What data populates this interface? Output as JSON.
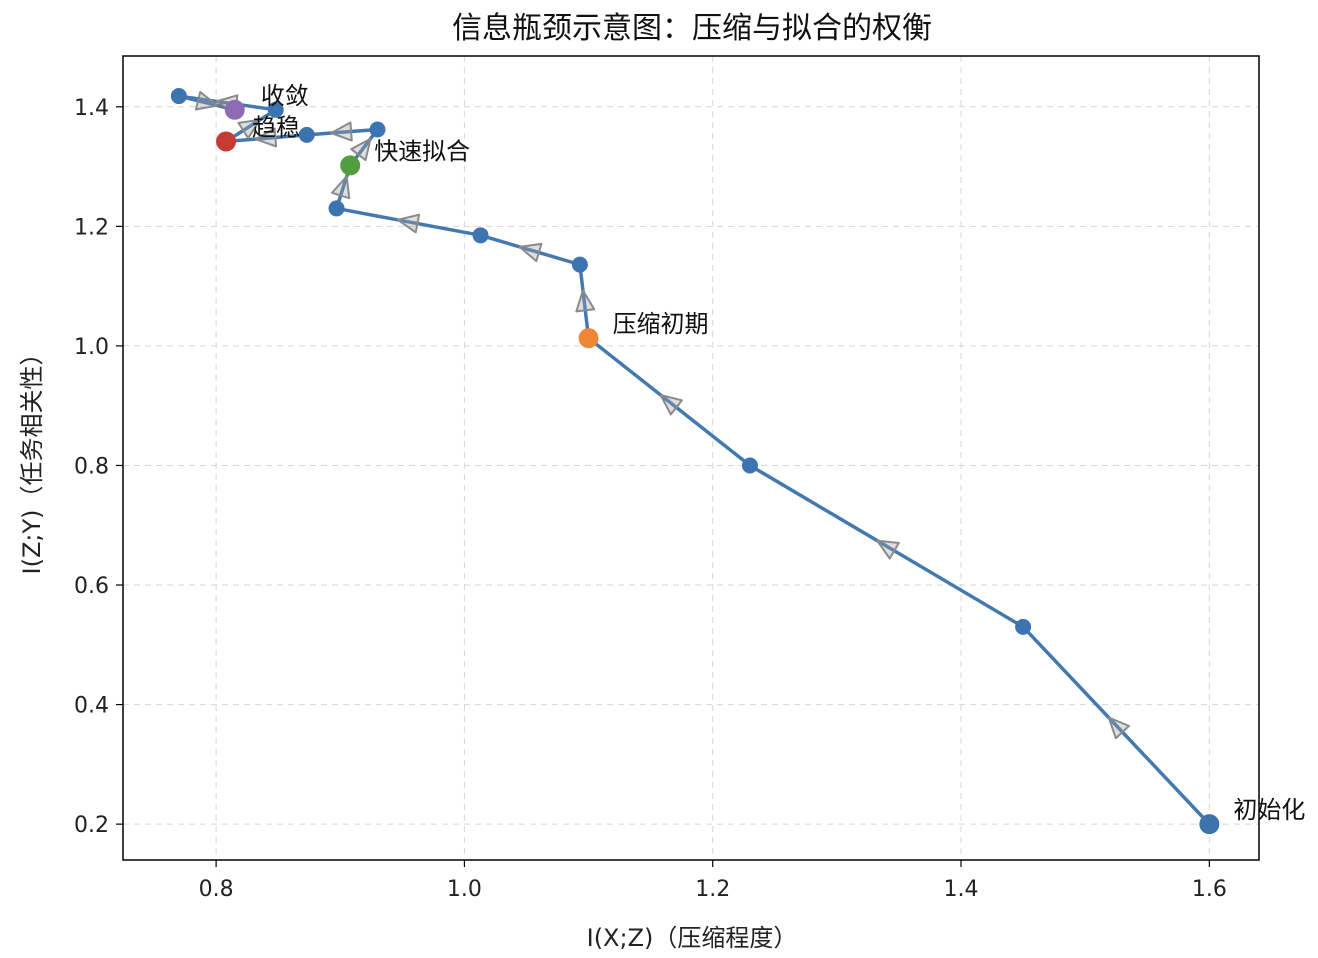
{
  "chart_data": {
    "type": "line",
    "title": "信息瓶颈示意图：压缩与拟合的权衡",
    "xlabel": "I(X;Z)（压缩程度）",
    "ylabel": "I(Z;Y)（任务相关性）",
    "xlim": [
      0.725,
      1.64
    ],
    "ylim": [
      0.14,
      1.485
    ],
    "xticks": [
      "0.8",
      "1.0",
      "1.2",
      "1.4",
      "1.6"
    ],
    "yticks": [
      "0.2",
      "0.4",
      "0.6",
      "0.8",
      "1.0",
      "1.2",
      "1.4"
    ],
    "grid": true,
    "series": [
      {
        "x": [
          1.6,
          1.45,
          1.23,
          1.1,
          1.093,
          1.013,
          0.897,
          0.908,
          0.93,
          0.873,
          0.808,
          0.848,
          0.77,
          0.815
        ],
        "y": [
          0.2,
          0.53,
          0.8,
          1.013,
          1.136,
          1.185,
          1.23,
          1.302,
          1.362,
          1.353,
          1.342,
          1.395,
          1.418,
          1.395
        ]
      }
    ],
    "annotations": [
      {
        "text": "初始化",
        "x": 1.6,
        "y": 0.2,
        "color": "#3d73ad"
      },
      {
        "text": "压缩初期",
        "x": 1.1,
        "y": 1.013,
        "color": "#ef8636"
      },
      {
        "text": "快速拟合",
        "x": 0.908,
        "y": 1.302,
        "color": "#519e3e"
      },
      {
        "text": "趋稳",
        "x": 0.808,
        "y": 1.342,
        "color": "#c53a32"
      },
      {
        "text": "收敛",
        "x": 0.815,
        "y": 1.395,
        "color": "#8f6bb6"
      }
    ],
    "colors": {
      "line": "#4479b0",
      "marker": "#3b74b0",
      "arrow": "#8a8a8a"
    }
  }
}
